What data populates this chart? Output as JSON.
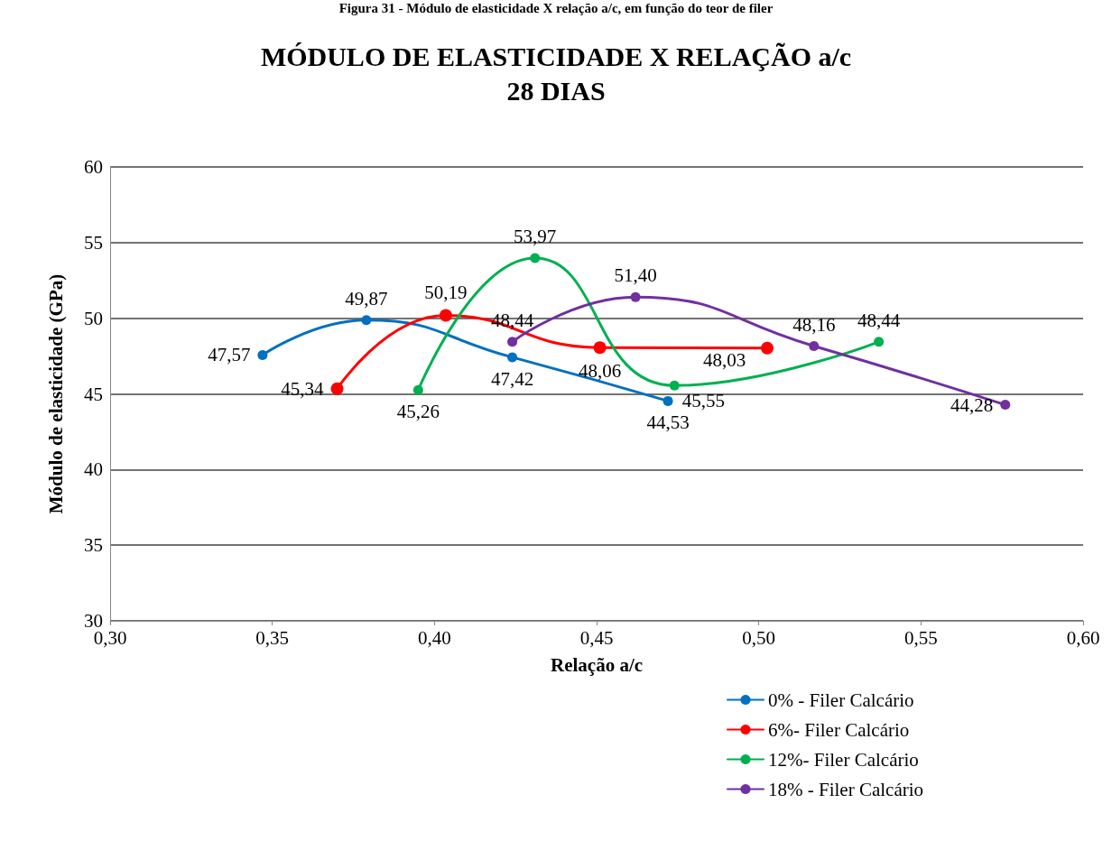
{
  "chart_data": {
    "type": "line",
    "title": "MÓDULO DE ELASTICIDADE X RELAÇÃO a/c\n28 DIAS",
    "xlabel": "Relação a/c",
    "ylabel": "Módulo de elasticidade (GPa)",
    "annotations": [
      "Figura 31 - Módulo de elasticidade X relação a/c, em função do teor de filer"
    ],
    "xlim": [
      0.3,
      0.6
    ],
    "xticks": [
      {
        "value": 0.3,
        "label": "0,30"
      },
      {
        "value": 0.35,
        "label": "0,35"
      },
      {
        "value": 0.4,
        "label": "0,40"
      },
      {
        "value": 0.45,
        "label": "0,45"
      },
      {
        "value": 0.5,
        "label": "0,50"
      },
      {
        "value": 0.55,
        "label": "0,55"
      },
      {
        "value": 0.6,
        "label": "0,60"
      }
    ],
    "ylim": [
      30,
      60
    ],
    "yticks": [
      30,
      35,
      40,
      45,
      50,
      55,
      60
    ],
    "grid": "y",
    "legend": "bottom right",
    "marker": "circle",
    "series": [
      {
        "name": "0% - Filer Calcário",
        "color": "#0070c0",
        "x": [
          0.347,
          0.379,
          0.424,
          0.472
        ],
        "values": [
          47.57,
          49.87,
          47.42,
          44.53
        ],
        "value_labels": [
          "47,57",
          "49,87",
          "47,42",
          "44,53"
        ]
      },
      {
        "name": "6%- Filer Calcário",
        "color": "#ff0000",
        "x": [
          0.37,
          0.4035,
          0.451,
          0.5026
        ],
        "values": [
          45.34,
          50.19,
          48.06,
          48.03
        ],
        "value_labels": [
          "45,34",
          "50,19",
          "48,06",
          "48,03"
        ]
      },
      {
        "name": "12%- Filer Calcário",
        "color": "#00b050",
        "x": [
          0.395,
          0.431,
          0.474,
          0.537
        ],
        "values": [
          45.26,
          53.97,
          45.55,
          48.44
        ],
        "value_labels": [
          "45,26",
          "53,97",
          "45,55",
          "48,44"
        ]
      },
      {
        "name": "18% - Filer Calcário",
        "color": "#7030a0",
        "x": [
          0.424,
          0.462,
          0.517,
          0.576
        ],
        "values": [
          48.44,
          51.4,
          48.16,
          44.28
        ],
        "value_labels": [
          "48,44",
          "51,40",
          "48,16",
          "44,28"
        ]
      }
    ]
  }
}
